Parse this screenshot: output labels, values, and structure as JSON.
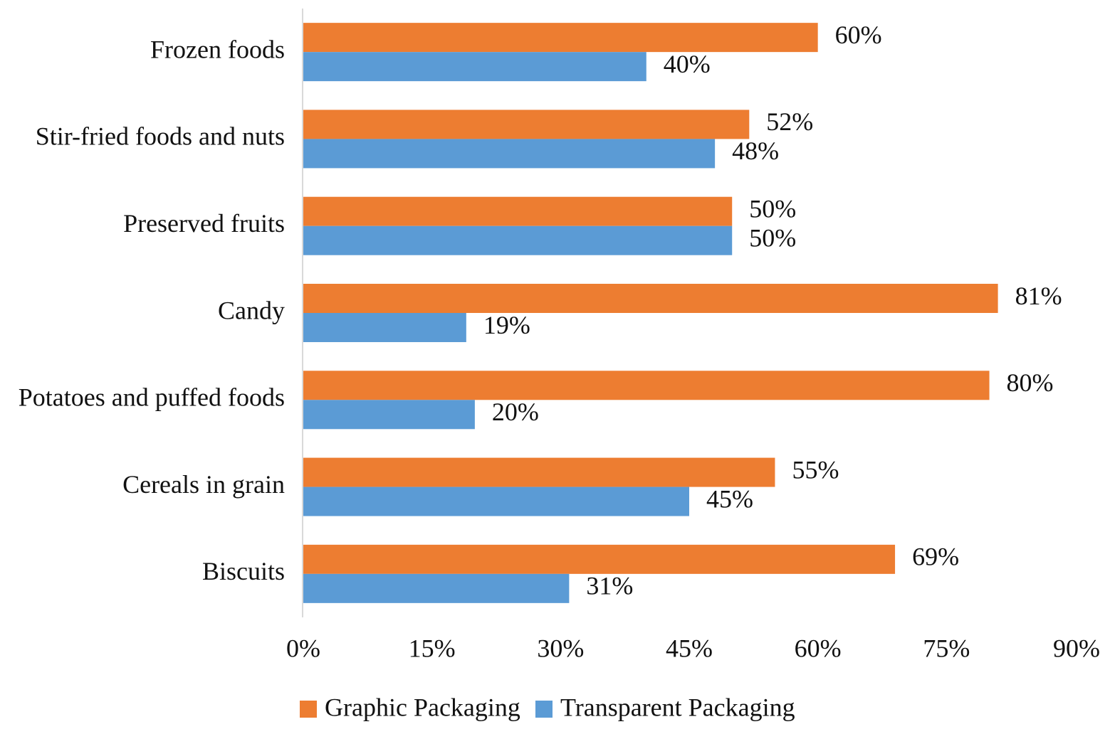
{
  "chart_data": {
    "type": "bar",
    "orientation": "horizontal",
    "title": "",
    "xlabel": "",
    "ylabel": "",
    "categories": [
      "Frozen foods",
      "Stir-fried foods and nuts",
      "Preserved fruits",
      "Candy",
      "Potatoes and puffed foods",
      "Cereals in grain",
      "Biscuits"
    ],
    "series": [
      {
        "name": "Graphic Packaging",
        "color": "#ED7D31",
        "values": [
          60,
          52,
          50,
          81,
          80,
          55,
          69
        ],
        "labels": [
          "60%",
          "52%",
          "50%",
          "81%",
          "80%",
          "55%",
          "69%"
        ]
      },
      {
        "name": "Transparent Packaging",
        "color": "#5B9BD5",
        "values": [
          40,
          48,
          50,
          19,
          20,
          45,
          31
        ],
        "labels": [
          "40%",
          "48%",
          "50%",
          "19%",
          "20%",
          "45%",
          "31%"
        ]
      }
    ],
    "xlim": [
      0,
      90
    ],
    "xticks": [
      0,
      15,
      30,
      45,
      60,
      75,
      90
    ],
    "xtick_labels": [
      "0%",
      "15%",
      "30%",
      "45%",
      "60%",
      "75%",
      "90%"
    ],
    "grid": false,
    "legend_position": "bottom"
  }
}
